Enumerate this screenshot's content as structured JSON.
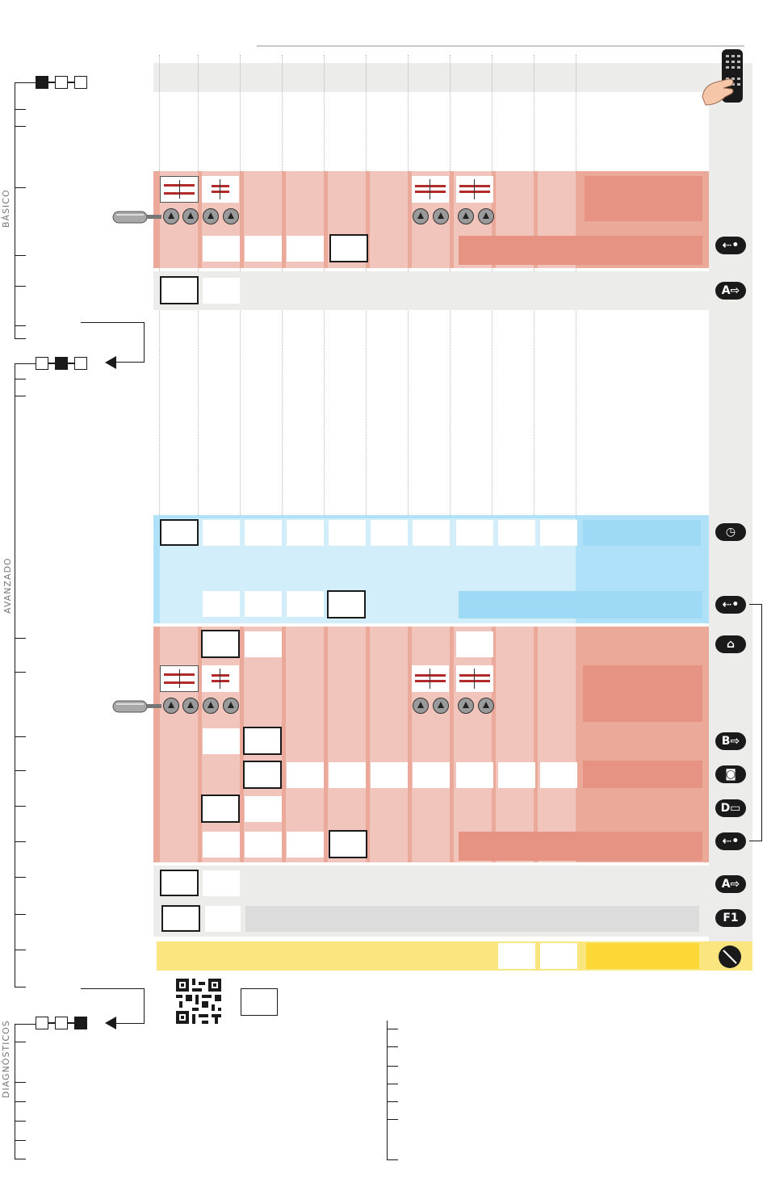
{
  "sections": {
    "basic": "BÁSICO",
    "advanced": "AVANZADO",
    "diagnostics": "DIAGNÓSTICOS"
  },
  "icons": {
    "usb_1": "usb-icon",
    "ac_in_1": "A-input-icon",
    "clock": "clock-icon",
    "usb_2": "usb-icon",
    "ghost": "ghost-icon",
    "b_in": "B-input-icon",
    "camera": "camera-icon",
    "dd": "DD-icon",
    "usb_3": "usb-icon",
    "ac_in_2": "A-input-icon",
    "f1": "F1-icon",
    "sweep": "sweep-icon"
  },
  "colors": {
    "salmon_light": "#f2c5bc",
    "salmon_mid": "#eba99a",
    "salmon_dark": "#e69383",
    "blue_light": "#d2eefa",
    "blue_mid": "#afe2f8",
    "gray_band": "#ececea",
    "yellow_band": "#fbe57f",
    "yellow_dark": "#fbd836"
  }
}
